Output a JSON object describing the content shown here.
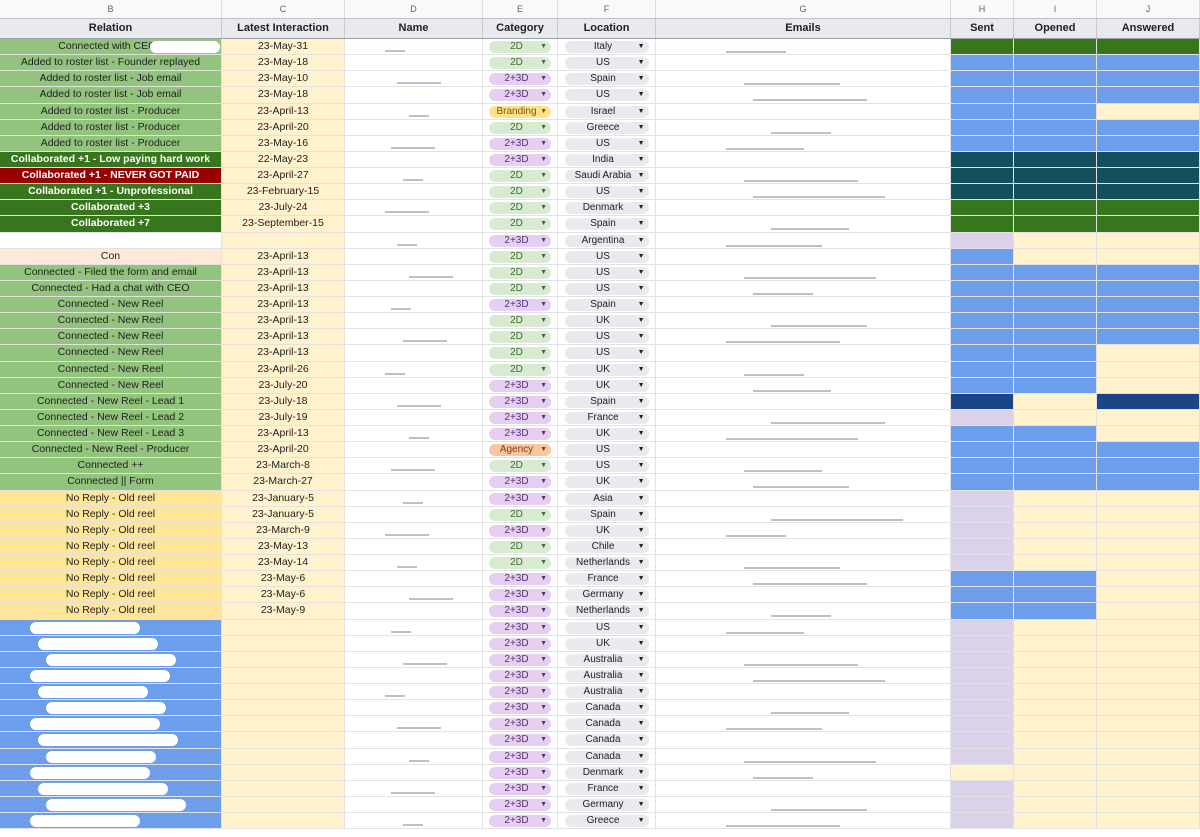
{
  "colors": {
    "green_light": "#93c47d",
    "green_dark": "#38761d",
    "red_dark": "#990000",
    "yellow_light": "#ffe599",
    "blue": "#6d9eeb",
    "blue_dark": "#1c4587",
    "teal_dark": "#134f5c",
    "cream": "#fff2cc",
    "lavender": "#d9d2e9",
    "chip_2d": "#d9ead3",
    "chip_2d3d": "#e4cff0",
    "chip_branding": "#fce28a",
    "chip_agency": "#f9c6a3"
  },
  "column_letters": [
    "B",
    "C",
    "D",
    "E",
    "F",
    "G",
    "H",
    "I",
    "J"
  ],
  "headers": {
    "relation": "Relation",
    "latest": "Latest Interaction",
    "name": "Name",
    "category": "Category",
    "location": "Location",
    "emails": "Emails",
    "sent": "Sent",
    "opened": "Opened",
    "answered": "Answered"
  },
  "rows": [
    {
      "relation": "Connected with CEO -",
      "rel_style": "green",
      "date": "23-May-31",
      "category": "2D",
      "location": "Italy",
      "sent": "green_dark",
      "opened": "green_dark",
      "answered": "green_dark"
    },
    {
      "relation": "Added to roster list - Founder replayed",
      "rel_style": "green",
      "date": "23-May-18",
      "category": "2D",
      "location": "US",
      "sent": "blue",
      "opened": "blue",
      "answered": "blue"
    },
    {
      "relation": "Added to roster list - Job email",
      "rel_style": "green",
      "date": "23-May-10",
      "category": "2+3D",
      "location": "Spain",
      "sent": "blue",
      "opened": "blue",
      "answered": "blue"
    },
    {
      "relation": "Added to roster list - Job email",
      "rel_style": "green",
      "date": "23-May-18",
      "category": "2+3D",
      "location": "US",
      "sent": "blue",
      "opened": "blue",
      "answered": "blue"
    },
    {
      "relation": "Added to roster list - Producer",
      "rel_style": "green",
      "date": "23-April-13",
      "category": "Branding",
      "location": "Israel",
      "sent": "blue",
      "opened": "blue",
      "answered": "cream"
    },
    {
      "relation": "Added to roster list - Producer",
      "rel_style": "green",
      "date": "23-April-20",
      "category": "2D",
      "location": "Greece",
      "sent": "blue",
      "opened": "blue",
      "answered": "blue"
    },
    {
      "relation": "Added to roster list - Producer",
      "rel_style": "green",
      "date": "23-May-16",
      "category": "2+3D",
      "location": "US",
      "sent": "blue",
      "opened": "blue",
      "answered": "blue"
    },
    {
      "relation": "Collaborated +1 - Low paying hard work",
      "rel_style": "green_dark",
      "date": "22-May-23",
      "category": "2+3D",
      "location": "India",
      "sent": "teal_dark",
      "opened": "teal_dark",
      "answered": "teal_dark"
    },
    {
      "relation": "Collaborated +1 - NEVER GOT PAID",
      "rel_style": "red_dark",
      "date": "23-April-27",
      "category": "2D",
      "location": "Saudi Arabia",
      "sent": "teal_dark",
      "opened": "teal_dark",
      "answered": "teal_dark"
    },
    {
      "relation": "Collaborated +1 - Unprofessional",
      "rel_style": "green_dark",
      "date": "23-February-15",
      "category": "2D",
      "location": "US",
      "sent": "teal_dark",
      "opened": "teal_dark",
      "answered": "teal_dark"
    },
    {
      "relation": "Collaborated +3",
      "rel_style": "green_dark",
      "date": "23-July-24",
      "category": "2D",
      "location": "Denmark",
      "sent": "green_dark",
      "opened": "green_dark",
      "answered": "green_dark"
    },
    {
      "relation": "Collaborated +7",
      "rel_style": "green_dark",
      "date": "23-September-15",
      "category": "2D",
      "location": "Spain",
      "sent": "green_dark",
      "opened": "green_dark",
      "answered": "green_dark"
    },
    {
      "relation": "",
      "rel_style": "white",
      "date": "",
      "category": "2+3D",
      "location": "Argentina",
      "sent": "lavender",
      "opened": "cream",
      "answered": "cream"
    },
    {
      "relation": "Con",
      "rel_style": "peach",
      "date": "23-April-13",
      "category": "2D",
      "location": "US",
      "sent": "blue",
      "opened": "cream",
      "answered": "cream"
    },
    {
      "relation": "Connected - Filed the form and email",
      "rel_style": "green",
      "date": "23-April-13",
      "category": "2D",
      "location": "US",
      "sent": "blue",
      "opened": "blue",
      "answered": "blue"
    },
    {
      "relation": "Connected - Had a chat with CEO",
      "rel_style": "green",
      "date": "23-April-13",
      "category": "2D",
      "location": "US",
      "sent": "blue",
      "opened": "blue",
      "answered": "blue"
    },
    {
      "relation": "Connected - New Reel",
      "rel_style": "green",
      "date": "23-April-13",
      "category": "2+3D",
      "location": "Spain",
      "sent": "blue",
      "opened": "blue",
      "answered": "blue"
    },
    {
      "relation": "Connected - New Reel",
      "rel_style": "green",
      "date": "23-April-13",
      "category": "2D",
      "location": "UK",
      "sent": "blue",
      "opened": "blue",
      "answered": "blue"
    },
    {
      "relation": "Connected - New Reel",
      "rel_style": "green",
      "date": "23-April-13",
      "category": "2D",
      "location": "US",
      "sent": "blue",
      "opened": "blue",
      "answered": "blue"
    },
    {
      "relation": "Connected - New Reel",
      "rel_style": "green",
      "date": "23-April-13",
      "category": "2D",
      "location": "US",
      "sent": "blue",
      "opened": "blue",
      "answered": "cream"
    },
    {
      "relation": "Connected - New Reel",
      "rel_style": "green",
      "date": "23-April-26",
      "category": "2D",
      "location": "UK",
      "sent": "blue",
      "opened": "blue",
      "answered": "cream"
    },
    {
      "relation": "Connected - New Reel",
      "rel_style": "green",
      "date": "23-July-20",
      "category": "2+3D",
      "location": "UK",
      "sent": "blue",
      "opened": "blue",
      "answered": "cream"
    },
    {
      "relation": "Connected - New Reel - Lead 1",
      "rel_style": "green",
      "date": "23-July-18",
      "category": "2+3D",
      "location": "Spain",
      "sent": "blue_dark",
      "opened": "cream",
      "answered": "blue_dark"
    },
    {
      "relation": "Connected - New Reel - Lead 2",
      "rel_style": "green",
      "date": "23-July-19",
      "category": "2+3D",
      "location": "France",
      "sent": "lavender",
      "opened": "cream",
      "answered": "cream"
    },
    {
      "relation": "Connected - New Reel - Lead 3",
      "rel_style": "green",
      "date": "23-April-13",
      "category": "2+3D",
      "location": "UK",
      "sent": "blue",
      "opened": "blue",
      "answered": "cream"
    },
    {
      "relation": "Connected - New Reel - Producer",
      "rel_style": "green",
      "date": "23-April-20",
      "category": "Agency",
      "location": "US",
      "sent": "blue",
      "opened": "blue",
      "answered": "blue"
    },
    {
      "relation": "Connected ++",
      "rel_style": "green",
      "date": "23-March-8",
      "category": "2D",
      "location": "US",
      "sent": "blue",
      "opened": "blue",
      "answered": "blue"
    },
    {
      "relation": "Connected || Form",
      "rel_style": "green",
      "date": "23-March-27",
      "category": "2+3D",
      "location": "UK",
      "sent": "blue",
      "opened": "blue",
      "answered": "blue"
    },
    {
      "relation": "No Reply - Old reel",
      "rel_style": "yellow",
      "date": "23-January-5",
      "category": "2+3D",
      "location": "Asia",
      "sent": "lavender",
      "opened": "cream",
      "answered": "cream"
    },
    {
      "relation": "No Reply - Old reel",
      "rel_style": "yellow",
      "date": "23-January-5",
      "category": "2D",
      "location": "Spain",
      "sent": "lavender",
      "opened": "cream",
      "answered": "cream"
    },
    {
      "relation": "No Reply - Old reel",
      "rel_style": "yellow",
      "date": "23-March-9",
      "category": "2+3D",
      "location": "UK",
      "sent": "lavender",
      "opened": "cream",
      "answered": "cream"
    },
    {
      "relation": "No Reply - Old reel",
      "rel_style": "yellow",
      "date": "23-May-13",
      "category": "2D",
      "location": "Chile",
      "sent": "lavender",
      "opened": "cream",
      "answered": "cream"
    },
    {
      "relation": "No Reply - Old reel",
      "rel_style": "yellow",
      "date": "23-May-14",
      "category": "2D",
      "location": "Netherlands",
      "sent": "lavender",
      "opened": "cream",
      "answered": "cream"
    },
    {
      "relation": "No Reply - Old reel",
      "rel_style": "yellow",
      "date": "23-May-6",
      "category": "2+3D",
      "location": "France",
      "sent": "blue",
      "opened": "blue",
      "answered": "cream"
    },
    {
      "relation": "No Reply - Old reel",
      "rel_style": "yellow",
      "date": "23-May-6",
      "category": "2+3D",
      "location": "Germany",
      "sent": "blue",
      "opened": "blue",
      "answered": "cream"
    },
    {
      "relation": "No Reply - Old reel",
      "rel_style": "yellow",
      "date": "23-May-9",
      "category": "2+3D",
      "location": "Netherlands",
      "sent": "blue",
      "opened": "blue",
      "answered": "cream"
    },
    {
      "relation": "",
      "rel_style": "blue",
      "date": "",
      "category": "2+3D",
      "location": "US",
      "sent": "lavender",
      "opened": "cream",
      "answered": "cream"
    },
    {
      "relation": "",
      "rel_style": "blue",
      "date": "",
      "category": "2+3D",
      "location": "UK",
      "sent": "lavender",
      "opened": "cream",
      "answered": "cream"
    },
    {
      "relation": "",
      "rel_style": "blue",
      "date": "",
      "category": "2+3D",
      "location": "Australia",
      "sent": "lavender",
      "opened": "cream",
      "answered": "cream"
    },
    {
      "relation": "",
      "rel_style": "blue",
      "date": "",
      "category": "2+3D",
      "location": "Australia",
      "sent": "lavender",
      "opened": "cream",
      "answered": "cream"
    },
    {
      "relation": "",
      "rel_style": "blue",
      "date": "",
      "category": "2+3D",
      "location": "Australia",
      "sent": "lavender",
      "opened": "cream",
      "answered": "cream"
    },
    {
      "relation": "",
      "rel_style": "blue",
      "date": "",
      "category": "2+3D",
      "location": "Canada",
      "sent": "lavender",
      "opened": "cream",
      "answered": "cream"
    },
    {
      "relation": "",
      "rel_style": "blue",
      "date": "",
      "category": "2+3D",
      "location": "Canada",
      "sent": "lavender",
      "opened": "cream",
      "answered": "cream"
    },
    {
      "relation": "",
      "rel_style": "blue",
      "date": "",
      "category": "2+3D",
      "location": "Canada",
      "sent": "lavender",
      "opened": "cream",
      "answered": "cream"
    },
    {
      "relation": "",
      "rel_style": "blue",
      "date": "",
      "category": "2+3D",
      "location": "Canada",
      "sent": "lavender",
      "opened": "cream",
      "answered": "cream"
    },
    {
      "relation": "",
      "rel_style": "blue",
      "date": "",
      "category": "2+3D",
      "location": "Denmark",
      "sent": "cream",
      "opened": "cream",
      "answered": "cream"
    },
    {
      "relation": "",
      "rel_style": "blue",
      "date": "",
      "category": "2+3D",
      "location": "France",
      "sent": "lavender",
      "opened": "cream",
      "answered": "cream"
    },
    {
      "relation": "",
      "rel_style": "blue",
      "date": "",
      "category": "2+3D",
      "location": "Germany",
      "sent": "lavender",
      "opened": "cream",
      "answered": "cream"
    },
    {
      "relation": "",
      "rel_style": "blue",
      "date": "",
      "category": "2+3D",
      "location": "Greece",
      "sent": "lavender",
      "opened": "cream",
      "answered": "cream"
    }
  ]
}
